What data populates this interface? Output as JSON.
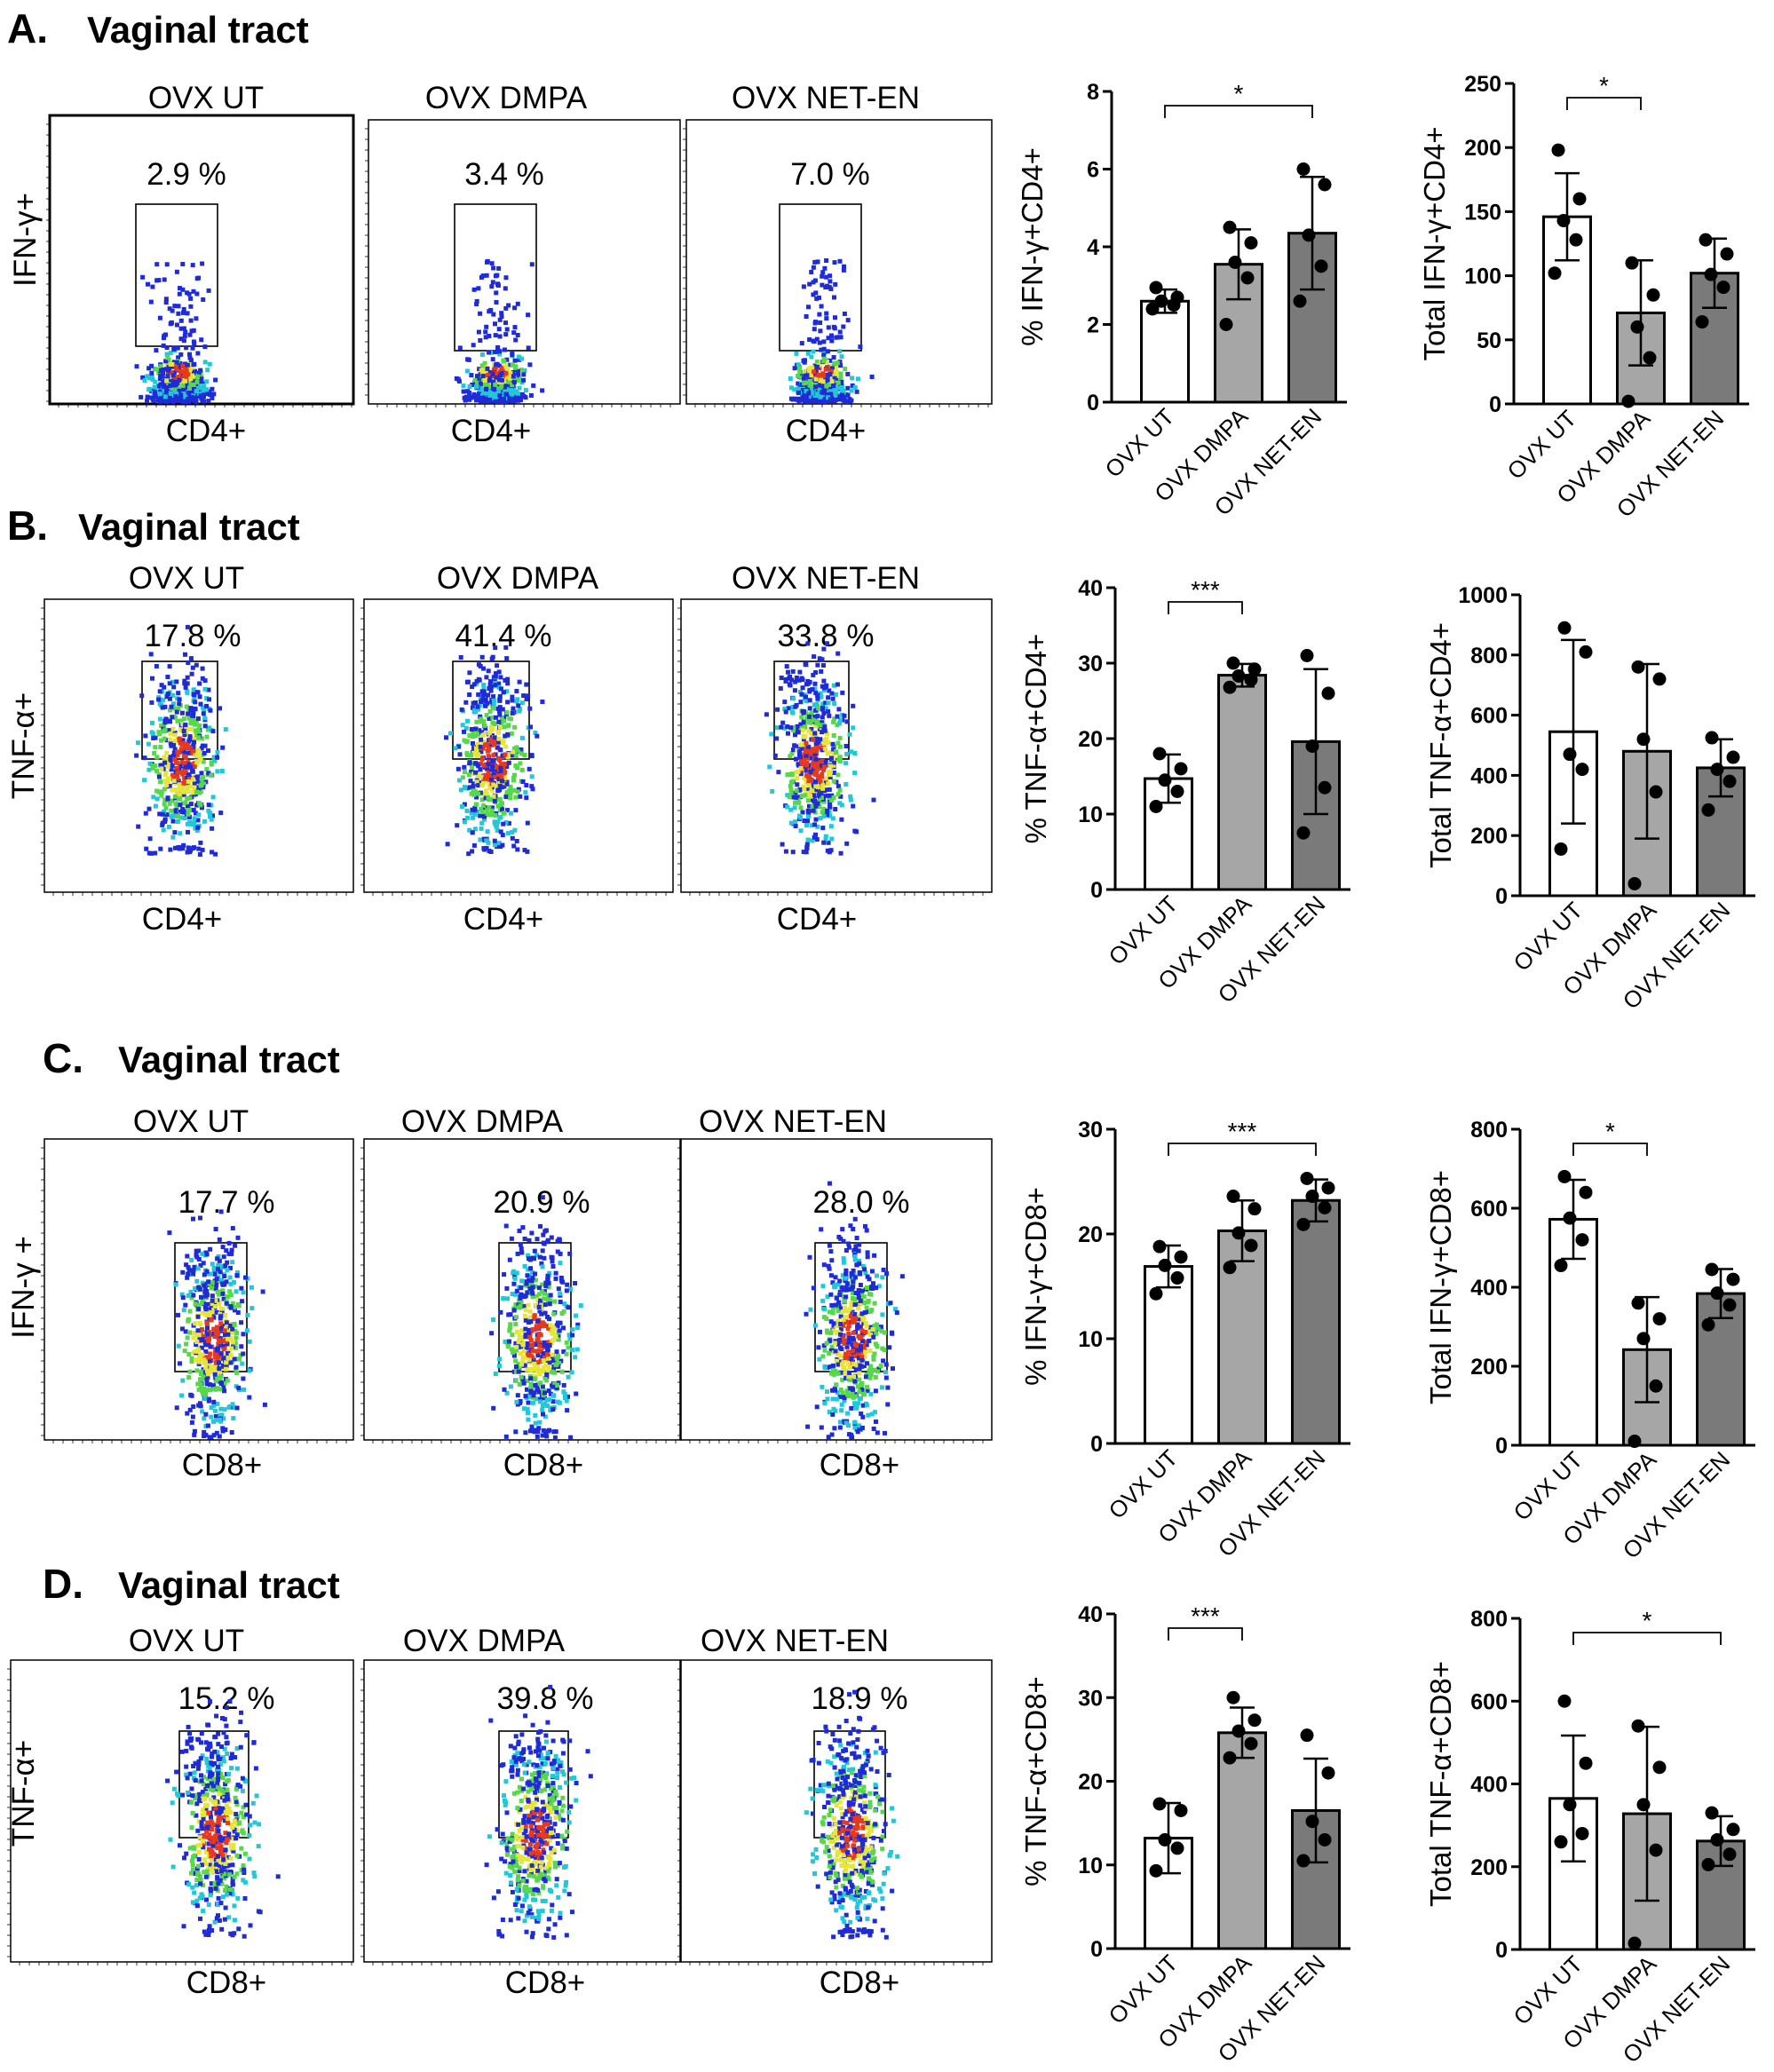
{
  "figure": {
    "panels": [
      {
        "letter": "A.",
        "title": "Vaginal tract",
        "ylabel": "IFN-γ+",
        "xlabel": "CD4+",
        "groups": [
          "OVX UT",
          "OVX DMPA",
          "OVX NET-EN"
        ],
        "percentages": [
          "2.9 %",
          "3.4 %",
          "7.0 %"
        ]
      },
      {
        "letter": "B.",
        "title": "Vaginal tract",
        "ylabel": "TNF-α+",
        "xlabel": "CD4+",
        "groups": [
          "OVX UT",
          "OVX DMPA",
          "OVX NET-EN"
        ],
        "percentages": [
          "17.8 %",
          "41.4 %",
          "33.8 %"
        ]
      },
      {
        "letter": "C.",
        "title": "Vaginal tract",
        "ylabel": "IFN-γ +",
        "xlabel": "CD8+",
        "groups": [
          "OVX UT",
          "OVX DMPA",
          "OVX NET-EN"
        ],
        "percentages": [
          "17.7 %",
          "20.9 %",
          "28.0 %"
        ]
      },
      {
        "letter": "D.",
        "title": "Vaginal tract",
        "ylabel": "TNF-α+",
        "xlabel": "CD8+",
        "groups": [
          "OVX UT",
          "OVX DMPA",
          "OVX NET-EN"
        ],
        "percentages": [
          "15.2 %",
          "39.8 %",
          "18.9 %"
        ]
      }
    ]
  },
  "colors": {
    "bar_ut": "#ffffff",
    "bar_dmpa": "#a6a6a6",
    "bar_neten": "#7a7a7a",
    "axis": "#000000",
    "dot_blue": "#1f2bd6",
    "dot_cyan": "#22c8d8",
    "dot_green": "#56d84a",
    "dot_yellow": "#e6e63a",
    "dot_red": "#e53a1e"
  },
  "chart_data": [
    {
      "type": "bar",
      "panel": "A",
      "ylabel": "% IFN-γ+CD4+",
      "categories": [
        "OVX UT",
        "OVX DMPA",
        "OVX NET-EN"
      ],
      "values": [
        2.6,
        3.55,
        4.35
      ],
      "errors": [
        0.3,
        0.9,
        1.45
      ],
      "points": [
        [
          2.4,
          2.5,
          2.6,
          2.7,
          2.95
        ],
        [
          2.0,
          3.2,
          3.6,
          4.1,
          4.5
        ],
        [
          2.6,
          3.5,
          4.3,
          5.6,
          6.0
        ]
      ],
      "ylim": [
        0,
        8
      ],
      "ticks": [
        0,
        2,
        4,
        6,
        8
      ],
      "significance": [
        {
          "from": 0,
          "to": 2,
          "label": "*"
        }
      ]
    },
    {
      "type": "bar",
      "panel": "A",
      "ylabel": "Total IFN-γ+CD4+",
      "categories": [
        "OVX UT",
        "OVX DMPA",
        "OVX NET-EN"
      ],
      "values": [
        146,
        71,
        102
      ],
      "errors": [
        34,
        41,
        27
      ],
      "points": [
        [
          102,
          128,
          143,
          160,
          198
        ],
        [
          2,
          36,
          60,
          85,
          110
        ],
        [
          64,
          91,
          101,
          117,
          128
        ]
      ],
      "ylim": [
        0,
        250
      ],
      "ticks": [
        0,
        50,
        100,
        150,
        200,
        250
      ],
      "significance": [
        {
          "from": 0,
          "to": 1,
          "label": "*"
        }
      ]
    },
    {
      "type": "bar",
      "panel": "B",
      "ylabel": "% TNF-α+CD4+",
      "categories": [
        "OVX UT",
        "OVX DMPA",
        "OVX NET-EN"
      ],
      "values": [
        14.7,
        28.4,
        19.6
      ],
      "errors": [
        3.2,
        1.5,
        9.6
      ],
      "points": [
        [
          11.0,
          13.0,
          14.5,
          16.0,
          18.0
        ],
        [
          26.8,
          27.8,
          28.3,
          29.2,
          30.0
        ],
        [
          7.5,
          13.5,
          19.0,
          26.0,
          31.0
        ]
      ],
      "ylim": [
        0,
        40
      ],
      "ticks": [
        0,
        10,
        20,
        30,
        40
      ],
      "significance": [
        {
          "from": 0,
          "to": 1,
          "label": "***"
        }
      ]
    },
    {
      "type": "bar",
      "panel": "B",
      "ylabel": "Total TNF-α+CD4+",
      "categories": [
        "OVX UT",
        "OVX DMPA",
        "OVX NET-EN"
      ],
      "values": [
        545,
        480,
        425
      ],
      "errors": [
        305,
        290,
        95
      ],
      "points": [
        [
          155,
          420,
          470,
          810,
          890
        ],
        [
          40,
          345,
          520,
          720,
          760
        ],
        [
          285,
          380,
          420,
          460,
          525
        ]
      ],
      "ylim": [
        0,
        1000
      ],
      "ticks": [
        0,
        200,
        400,
        600,
        800,
        1000
      ],
      "significance": []
    },
    {
      "type": "bar",
      "panel": "C",
      "ylabel": "% IFN-γ+CD8+",
      "categories": [
        "OVX UT",
        "OVX DMPA",
        "OVX NET-EN"
      ],
      "values": [
        16.9,
        20.3,
        23.2
      ],
      "errors": [
        2.0,
        2.9,
        2.0
      ],
      "points": [
        [
          14.3,
          15.8,
          17.0,
          17.8,
          18.8
        ],
        [
          16.8,
          18.9,
          20.1,
          22.4,
          23.6
        ],
        [
          20.9,
          22.5,
          23.6,
          24.4,
          25.3
        ]
      ],
      "ylim": [
        0,
        30
      ],
      "ticks": [
        0,
        10,
        20,
        30
      ],
      "significance": [
        {
          "from": 0,
          "to": 2,
          "label": "***"
        }
      ]
    },
    {
      "type": "bar",
      "panel": "C",
      "ylabel": "Total IFN-γ+CD8+",
      "categories": [
        "OVX UT",
        "OVX DMPA",
        "OVX NET-EN"
      ],
      "values": [
        572,
        242,
        384
      ],
      "errors": [
        100,
        133,
        62
      ],
      "points": [
        [
          455,
          520,
          575,
          640,
          680
        ],
        [
          10,
          150,
          270,
          320,
          360
        ],
        [
          305,
          355,
          385,
          420,
          445
        ]
      ],
      "ylim": [
        0,
        800
      ],
      "ticks": [
        0,
        200,
        400,
        600,
        800
      ],
      "significance": [
        {
          "from": 0,
          "to": 1,
          "label": "*"
        }
      ]
    },
    {
      "type": "bar",
      "panel": "D",
      "ylabel": "% TNF-α+CD8+",
      "categories": [
        "OVX UT",
        "OVX DMPA",
        "OVX NET-EN"
      ],
      "values": [
        13.2,
        25.8,
        16.5
      ],
      "errors": [
        4.2,
        3.0,
        6.2
      ],
      "points": [
        [
          9.3,
          12.0,
          13.0,
          16.5,
          17.3
        ],
        [
          22.8,
          24.5,
          26.0,
          27.3,
          30.0
        ],
        [
          10.5,
          13.0,
          15.2,
          21.0,
          25.5
        ]
      ],
      "ylim": [
        0,
        40
      ],
      "ticks": [
        0,
        10,
        20,
        30,
        40
      ],
      "significance": [
        {
          "from": 0,
          "to": 1,
          "label": "***"
        }
      ]
    },
    {
      "type": "bar",
      "panel": "D",
      "ylabel": "Total TNF-α+CD8+",
      "categories": [
        "OVX UT",
        "OVX DMPA",
        "OVX NET-EN"
      ],
      "values": [
        365,
        328,
        262
      ],
      "errors": [
        152,
        210,
        60
      ],
      "points": [
        [
          260,
          280,
          350,
          450,
          600
        ],
        [
          15,
          240,
          350,
          440,
          540
        ],
        [
          205,
          230,
          265,
          290,
          330
        ]
      ],
      "ylim": [
        0,
        800
      ],
      "ticks": [
        0,
        200,
        400,
        600,
        800
      ],
      "significance": [
        {
          "from": 0,
          "to": 2,
          "label": "*"
        }
      ]
    }
  ]
}
